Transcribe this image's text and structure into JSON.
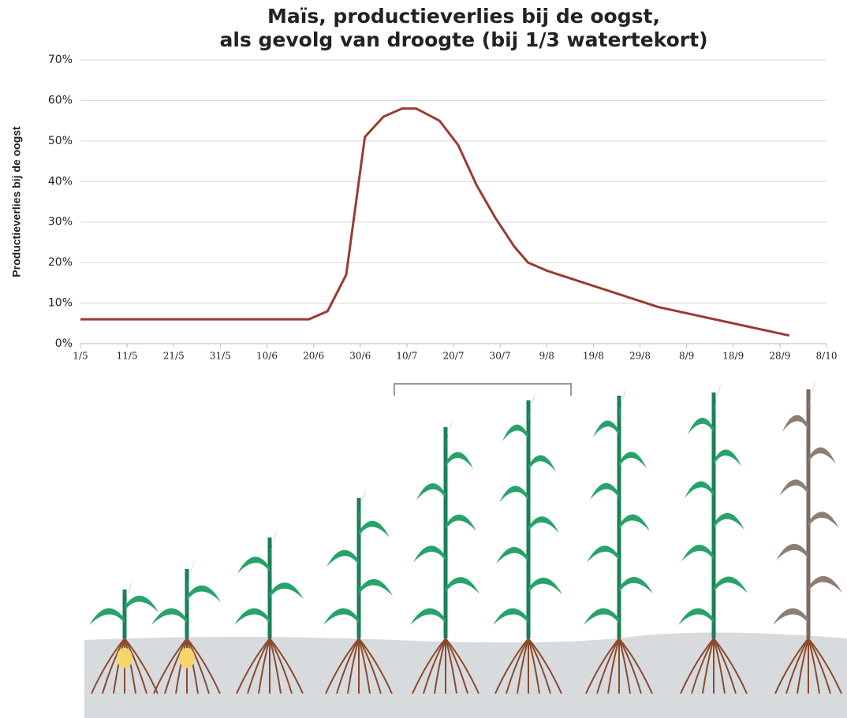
{
  "chart_data": {
    "type": "line",
    "title": [
      "Maïs, productieverlies bij de oogst,",
      "als gevolg van droogte (bij 1/3 watertekort)"
    ],
    "y_label": "Productieverlies bij de oogst",
    "x": [
      0,
      49,
      53,
      57,
      61,
      65,
      69,
      72,
      77,
      81,
      85,
      89,
      93,
      96,
      100,
      124,
      152
    ],
    "values": [
      6,
      6,
      8,
      17,
      51,
      56,
      58,
      58,
      55,
      49,
      39,
      31,
      24,
      20,
      18,
      9,
      2
    ],
    "color": "#9b3a32",
    "xlim": [
      0,
      160
    ],
    "xticks": [
      {
        "value": 0,
        "label": "1/5"
      },
      {
        "value": 10,
        "label": "11/5"
      },
      {
        "value": 20,
        "label": "21/5"
      },
      {
        "value": 30,
        "label": "31/5"
      },
      {
        "value": 40,
        "label": "10/6"
      },
      {
        "value": 50,
        "label": "20/6"
      },
      {
        "value": 60,
        "label": "30/6"
      },
      {
        "value": 70,
        "label": "10/7"
      },
      {
        "value": 80,
        "label": "20/7"
      },
      {
        "value": 90,
        "label": "30/7"
      },
      {
        "value": 100,
        "label": "9/8"
      },
      {
        "value": 110,
        "label": "19/8"
      },
      {
        "value": 120,
        "label": "29/8"
      },
      {
        "value": 130,
        "label": "8/9"
      },
      {
        "value": 140,
        "label": "18/9"
      },
      {
        "value": 150,
        "label": "28/9"
      },
      {
        "value": 160,
        "label": "8/10"
      }
    ],
    "ylim": [
      0,
      70
    ],
    "yticks": [
      {
        "value": 0,
        "label": "0%"
      },
      {
        "value": 10,
        "label": "10%"
      },
      {
        "value": 20,
        "label": "20%"
      },
      {
        "value": 30,
        "label": "30%"
      },
      {
        "value": 40,
        "label": "40%"
      },
      {
        "value": 50,
        "label": "50%"
      },
      {
        "value": 60,
        "label": "60%"
      },
      {
        "value": 70,
        "label": "70%"
      }
    ],
    "grid": true
  }
}
